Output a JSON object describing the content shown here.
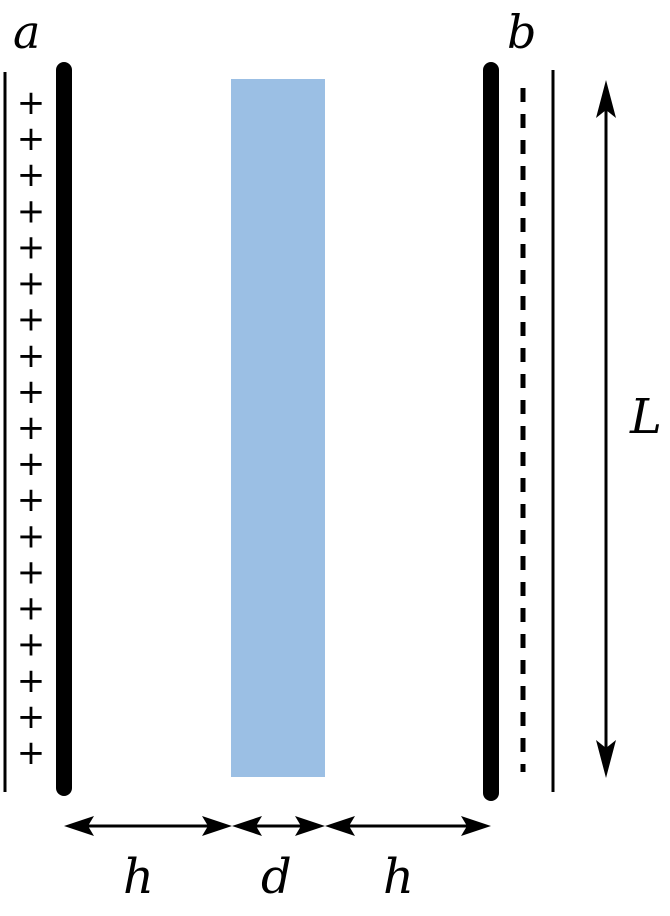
{
  "labels": {
    "plate_a": "a",
    "plate_b": "b",
    "length": "L",
    "gap_left": "h",
    "thickness": "d",
    "gap_right": "h"
  },
  "charges": {
    "symbol": "+",
    "count": 19
  },
  "colors": {
    "slab": "#9bbfe4",
    "ink": "#000000"
  }
}
